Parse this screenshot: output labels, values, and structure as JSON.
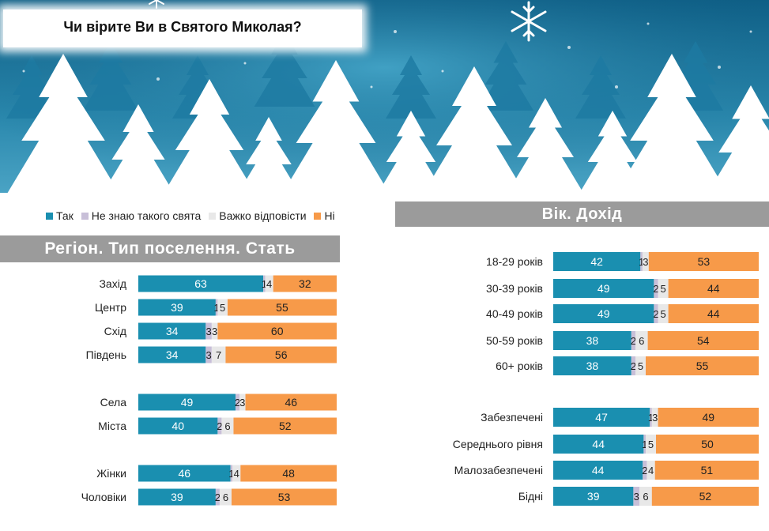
{
  "title": "Чи вірите Ви в Святого Миколая?",
  "legend": [
    {
      "label": "Так",
      "color": "#1a8fb0"
    },
    {
      "label": "Не знаю такого свята",
      "color": "#c8bfd8"
    },
    {
      "label": "Важко відповісти",
      "color": "#e8e8e8"
    },
    {
      "label": "Ні",
      "color": "#f79a49"
    }
  ],
  "left_header": "Регіон. Тип поселення. Стать",
  "right_header": "Вік. Дохід",
  "chart_data": [
    {
      "type": "bar",
      "orientation": "horizontal",
      "stacked": true,
      "title": "Регіон. Тип поселення. Стать",
      "categories": [
        "Захід",
        "Центр",
        "Схід",
        "Південь",
        "Села",
        "Міста",
        "Жінки",
        "Чоловіки"
      ],
      "series": [
        {
          "name": "Так",
          "values": [
            63,
            39,
            34,
            34,
            49,
            40,
            46,
            39
          ]
        },
        {
          "name": "Не знаю такого свята",
          "values": [
            1,
            1,
            3,
            3,
            2,
            2,
            1,
            2
          ]
        },
        {
          "name": "Важко відповісти",
          "values": [
            4,
            5,
            3,
            7,
            3,
            6,
            4,
            6
          ]
        },
        {
          "name": "Ні",
          "values": [
            32,
            55,
            60,
            56,
            46,
            52,
            48,
            53
          ]
        }
      ]
    },
    {
      "type": "bar",
      "orientation": "horizontal",
      "stacked": true,
      "title": "Вік. Дохід",
      "categories": [
        "18-29 років",
        "30-39 років",
        "40-49 років",
        "50-59 років",
        "60+ років",
        "Забезпечені",
        "Середнього рівня",
        "Малозабезпечені",
        "Бідні"
      ],
      "series": [
        {
          "name": "Так",
          "values": [
            42,
            49,
            49,
            38,
            38,
            47,
            44,
            44,
            39
          ]
        },
        {
          "name": "Не знаю такого свята",
          "values": [
            1,
            2,
            2,
            2,
            2,
            1,
            1,
            2,
            3
          ]
        },
        {
          "name": "Важко відповісти",
          "values": [
            3,
            5,
            5,
            6,
            5,
            3,
            5,
            4,
            6
          ]
        },
        {
          "name": "Ні",
          "values": [
            53,
            44,
            44,
            54,
            55,
            49,
            50,
            51,
            52
          ]
        }
      ]
    }
  ]
}
